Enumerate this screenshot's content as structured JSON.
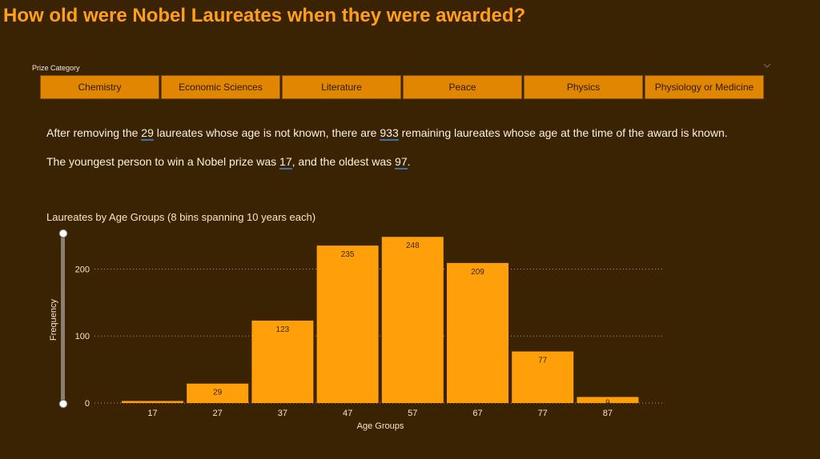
{
  "page": {
    "title": "How old were Nobel Laureates when they were awarded?"
  },
  "slicer": {
    "label": "Prize Category",
    "items": [
      "Chemistry",
      "Economic Sciences",
      "Literature",
      "Peace",
      "Physics",
      "Physiology or Medicine"
    ]
  },
  "summary": {
    "line1": {
      "a": "After removing the ",
      "unknown_count": "29",
      "b": " laureates whose age is not known, there are ",
      "known_count": "933",
      "c": " remaining laureates whose age at the time of the award is known."
    },
    "line2": {
      "a": "The youngest person to win a Nobel prize was ",
      "youngest": "17",
      "b": ", and the oldest was ",
      "oldest": "97",
      "c": "."
    }
  },
  "colors": {
    "background": "#3a2303",
    "title": "#ff9f1a",
    "bar": "#ffa00a",
    "slicer": "#e08600"
  },
  "chart_data": {
    "type": "bar",
    "title": "Laureates by Age Groups (8 bins spanning 10 years each)",
    "xlabel": "Age Groups",
    "ylabel": "Frequency",
    "categories": [
      "17",
      "27",
      "37",
      "47",
      "57",
      "67",
      "77",
      "87"
    ],
    "values": [
      3,
      29,
      123,
      235,
      248,
      209,
      77,
      9
    ],
    "data_labels": [
      "3",
      "29",
      "123",
      "235",
      "248",
      "209",
      "77",
      "9"
    ],
    "yticks": [
      0,
      100,
      200
    ],
    "ylim": [
      0,
      248
    ],
    "grid": true
  }
}
